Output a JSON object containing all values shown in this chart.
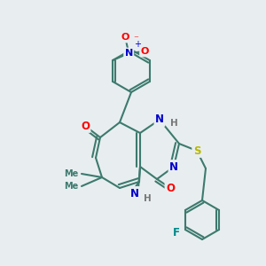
{
  "bg_color": "#e8eef0",
  "bond_color": "#3d7a6e",
  "bond_width": 1.5,
  "atom_colors": {
    "O": "#ff0000",
    "N": "#0000cc",
    "S": "#b8b800",
    "F": "#008888",
    "H": "#777777",
    "C": "#3d7a6e"
  },
  "font_size": 8.5
}
